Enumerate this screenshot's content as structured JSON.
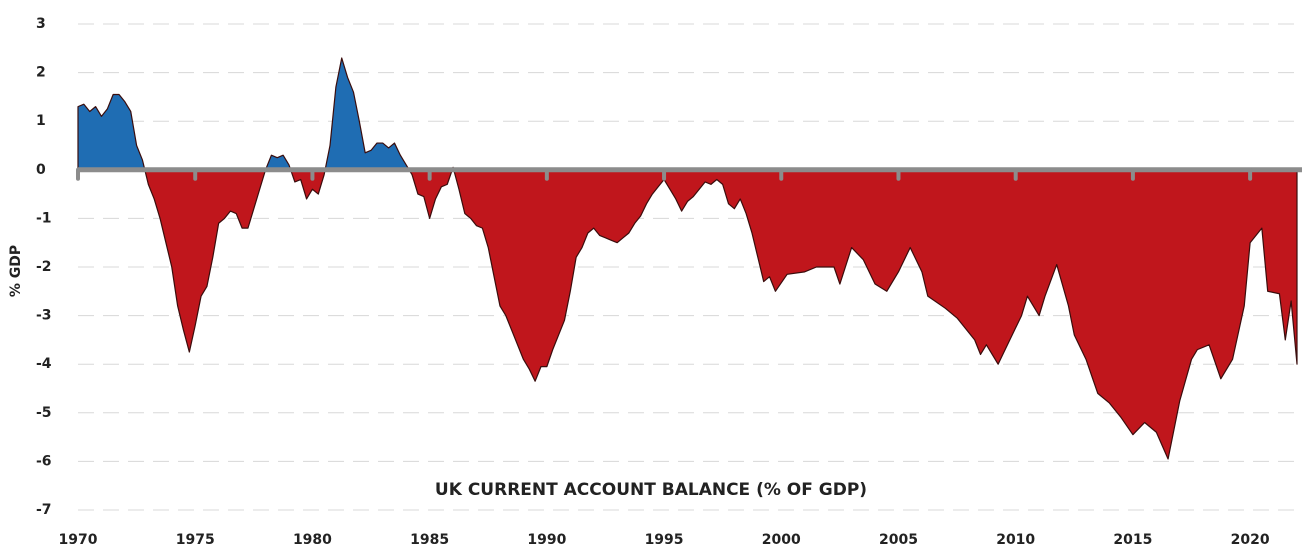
{
  "chart_data": {
    "type": "area",
    "title": "UK CURRENT ACCOUNT BALANCE (% OF GDP)",
    "y_label": "% GDP",
    "x": [
      1970.0,
      1970.25,
      1970.5,
      1970.75,
      1971.0,
      1971.25,
      1971.5,
      1971.75,
      1972.0,
      1972.25,
      1972.5,
      1972.75,
      1973.0,
      1973.25,
      1973.5,
      1973.75,
      1974.0,
      1974.25,
      1974.5,
      1974.75,
      1975.0,
      1975.25,
      1975.5,
      1975.75,
      1976.0,
      1976.25,
      1976.5,
      1976.75,
      1977.0,
      1977.25,
      1977.5,
      1977.75,
      1978.0,
      1978.25,
      1978.5,
      1978.75,
      1979.0,
      1979.25,
      1979.5,
      1979.75,
      1980.0,
      1980.25,
      1980.5,
      1980.75,
      1981.0,
      1981.25,
      1981.5,
      1981.75,
      1982.0,
      1982.25,
      1982.5,
      1982.75,
      1983.0,
      1983.25,
      1983.5,
      1983.75,
      1984.0,
      1984.25,
      1984.5,
      1984.75,
      1985.0,
      1985.25,
      1985.5,
      1985.75,
      1986.0,
      1986.25,
      1986.5,
      1986.75,
      1987.0,
      1987.25,
      1987.5,
      1987.75,
      1988.0,
      1988.25,
      1988.5,
      1988.75,
      1989.0,
      1989.25,
      1989.5,
      1989.75,
      1990.0,
      1990.25,
      1990.5,
      1990.75,
      1991.0,
      1991.25,
      1991.5,
      1991.75,
      1992.0,
      1992.25,
      1992.5,
      1992.75,
      1993.0,
      1993.25,
      1993.5,
      1993.75,
      1994.0,
      1994.25,
      1994.5,
      1994.75,
      1995.0,
      1995.25,
      1995.5,
      1995.75,
      1996.0,
      1996.25,
      1996.5,
      1996.75,
      1997.0,
      1997.25,
      1997.5,
      1997.75,
      1998.0,
      1998.25,
      1998.5,
      1998.75,
      1999.0,
      1999.25,
      1999.5,
      1999.75,
      2000.25,
      2001.0,
      2001.5,
      2002.25,
      2002.5,
      2003.0,
      2003.5,
      2004.0,
      2004.5,
      2005.0,
      2005.5,
      2006.0,
      2006.25,
      2007.0,
      2007.5,
      2008.25,
      2008.5,
      2008.75,
      2009.25,
      2009.75,
      2010.25,
      2010.5,
      2011.0,
      2011.25,
      2011.75,
      2012.25,
      2012.5,
      2013.0,
      2013.5,
      2014.0,
      2014.5,
      2015.0,
      2015.5,
      2016.0,
      2016.5,
      2017.0,
      2017.5,
      2017.75,
      2018.25,
      2018.75,
      2019.25,
      2019.75,
      2020.0,
      2020.5,
      2020.75,
      2021.25,
      2021.5,
      2021.75,
      2022.0
    ],
    "values": [
      1.3,
      1.35,
      1.2,
      1.3,
      1.1,
      1.25,
      1.55,
      1.55,
      1.4,
      1.2,
      0.5,
      0.2,
      -0.3,
      -0.6,
      -1.0,
      -1.5,
      -2.0,
      -2.8,
      -3.3,
      -3.75,
      -3.2,
      -2.6,
      -2.4,
      -1.8,
      -1.1,
      -1.0,
      -0.85,
      -0.9,
      -1.2,
      -1.2,
      -0.8,
      -0.4,
      0.0,
      0.3,
      0.25,
      0.3,
      0.1,
      -0.25,
      -0.2,
      -0.6,
      -0.4,
      -0.5,
      -0.1,
      0.5,
      1.7,
      2.3,
      1.9,
      1.6,
      1.0,
      0.35,
      0.4,
      0.55,
      0.55,
      0.45,
      0.55,
      0.3,
      0.1,
      -0.1,
      -0.5,
      -0.55,
      -1.0,
      -0.6,
      -0.35,
      -0.3,
      0.05,
      -0.4,
      -0.9,
      -1.0,
      -1.15,
      -1.2,
      -1.6,
      -2.2,
      -2.8,
      -3.0,
      -3.3,
      -3.6,
      -3.9,
      -4.1,
      -4.35,
      -4.05,
      -4.05,
      -3.7,
      -3.4,
      -3.1,
      -2.5,
      -1.8,
      -1.6,
      -1.3,
      -1.2,
      -1.35,
      -1.4,
      -1.45,
      -1.5,
      -1.4,
      -1.3,
      -1.1,
      -0.95,
      -0.7,
      -0.5,
      -0.35,
      -0.2,
      -0.4,
      -0.6,
      -0.85,
      -0.65,
      -0.55,
      -0.4,
      -0.25,
      -0.3,
      -0.2,
      -0.3,
      -0.7,
      -0.8,
      -0.6,
      -0.9,
      -1.3,
      -1.8,
      -2.3,
      -2.2,
      -2.5,
      -2.15,
      -2.1,
      -2.0,
      -2.0,
      -2.35,
      -1.6,
      -1.85,
      -2.35,
      -2.5,
      -2.1,
      -1.6,
      -2.1,
      -2.6,
      -2.85,
      -3.05,
      -3.5,
      -3.8,
      -3.6,
      -4.0,
      -3.5,
      -3.0,
      -2.6,
      -3.0,
      -2.6,
      -1.95,
      -2.8,
      -3.4,
      -3.9,
      -4.6,
      -4.8,
      -5.1,
      -5.45,
      -5.2,
      -5.4,
      -5.95,
      -4.75,
      -3.9,
      -3.7,
      -3.6,
      -4.3,
      -3.9,
      -2.8,
      -1.5,
      -1.2,
      -2.5,
      -2.55,
      -3.5,
      -2.7,
      -4.0
    ],
    "positive_color": "#1f6db3",
    "negative_color": "#c0161c",
    "xlim": [
      1970,
      2022
    ],
    "xticks": [
      1970,
      1975,
      1980,
      1985,
      1990,
      1995,
      2000,
      2005,
      2010,
      2015,
      2020
    ],
    "ylim": [
      -7,
      3
    ],
    "yticks": [
      -7,
      -6,
      -5,
      -4,
      -3,
      -2,
      -1,
      0,
      1,
      2,
      3
    ],
    "grid": true
  }
}
